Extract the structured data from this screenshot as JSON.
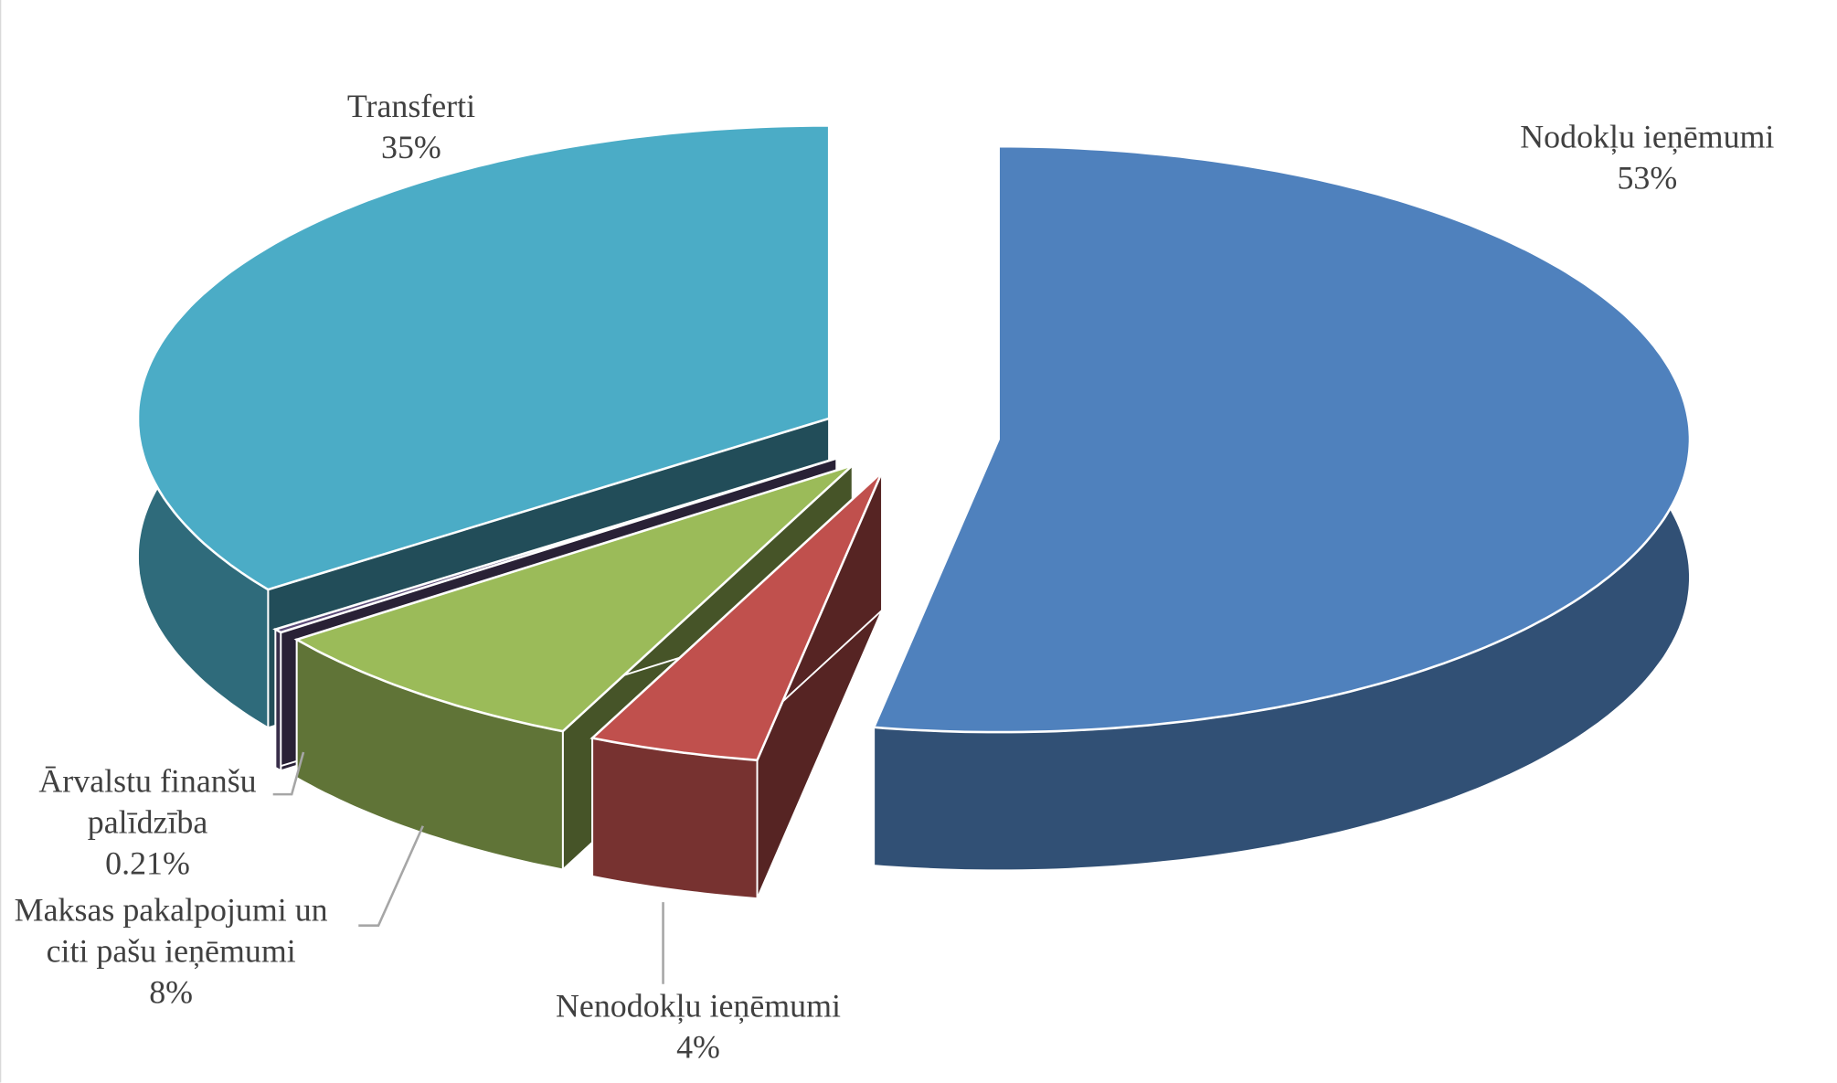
{
  "chart_data": {
    "type": "pie",
    "categories": [
      "Nodokļu ieņēmumi",
      "Nenodokļu ieņēmumi",
      "Maksas pakalpojumi un citi pašu ieņēmumi",
      "Ārvalstu finanšu palīdzība",
      "Transferti"
    ],
    "values": [
      53,
      4,
      8,
      0.21,
      35
    ],
    "value_labels": [
      "53%",
      "4%",
      "8%",
      "0.21%",
      "35%"
    ],
    "colors": [
      "#4f81bd",
      "#c0504d",
      "#9bbb59",
      "#5b4a78",
      "#4bacc6"
    ]
  }
}
